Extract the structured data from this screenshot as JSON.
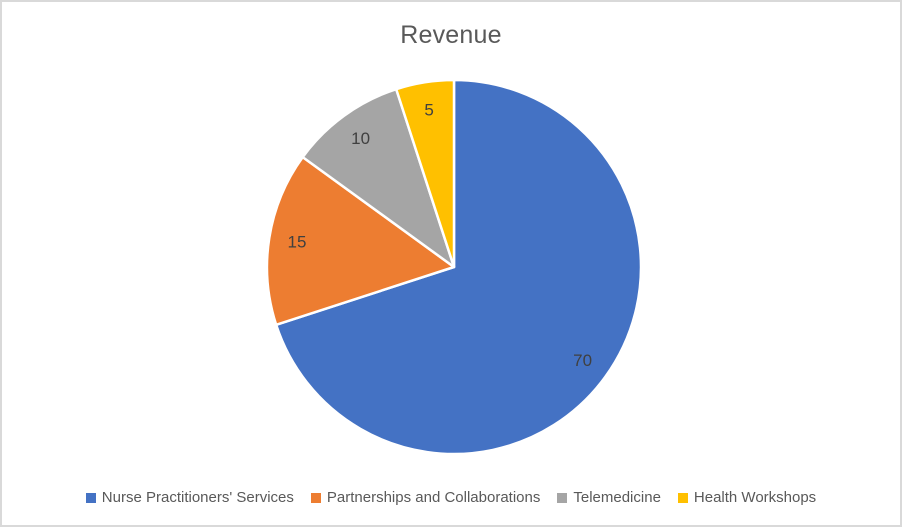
{
  "chart_data": {
    "type": "pie",
    "title": "Revenue",
    "categories": [
      "Nurse Practitioners' Services",
      "Partnerships and Collaborations",
      "Telemedicine",
      "Health Workshops"
    ],
    "values": [
      70,
      15,
      10,
      5
    ],
    "colors": [
      "#4472C4",
      "#ED7D31",
      "#A5A5A5",
      "#FFC000"
    ],
    "data_labels": [
      "70",
      "15",
      "10",
      "5"
    ],
    "start_angle_deg": 0,
    "direction": "clockwise",
    "legend_position": "bottom",
    "slice_border_color": "#FFFFFF",
    "title_color": "#595959",
    "label_color": "#404040",
    "legend_text_color": "#595959",
    "frame_border_color": "#D9D9D9",
    "background_color": "#FFFFFF"
  }
}
